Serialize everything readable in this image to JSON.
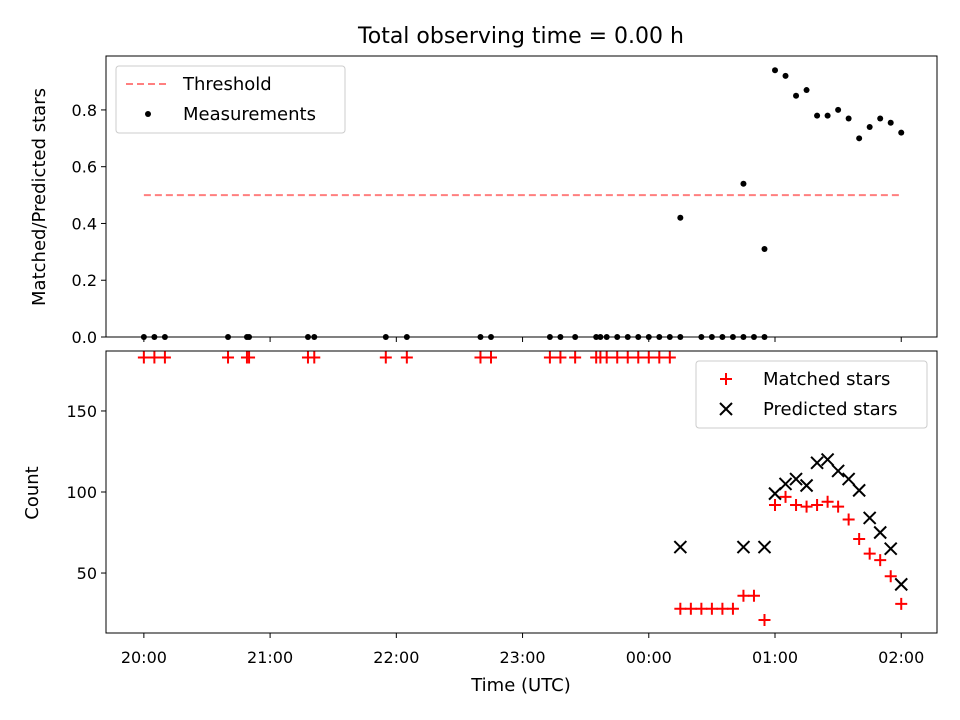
{
  "chart_data": [
    {
      "type": "scatter",
      "title": "Total observing time = 0.00 h",
      "ylabel": "Matched/Predicted stars",
      "xlabel": "",
      "xlim": [
        "19:42",
        "02:17"
      ],
      "ylim": [
        0,
        0.99
      ],
      "yticks": [
        "0.0",
        "0.2",
        "0.4",
        "0.6",
        "0.8"
      ],
      "xticks_labels_shown": false,
      "legend": {
        "position": "top-left"
      },
      "series": [
        {
          "name": "Threshold",
          "kind": "dashed-line",
          "color": "#ff7f7f",
          "x": [
            "20:00",
            "02:00"
          ],
          "y": [
            0.5,
            0.5
          ]
        },
        {
          "name": "Measurements",
          "kind": "dot",
          "color": "#000000",
          "x": [
            "20:00",
            "20:05",
            "20:10",
            "20:40",
            "20:49",
            "20:50",
            "21:18",
            "21:21",
            "21:55",
            "22:05",
            "22:40",
            "22:45",
            "23:13",
            "23:18",
            "23:25",
            "23:35",
            "23:37",
            "23:40",
            "23:45",
            "23:50",
            "23:55",
            "00:00",
            "00:05",
            "00:10",
            "00:15",
            "00:25",
            "00:30",
            "00:35",
            "00:40",
            "00:45",
            "00:50",
            "00:55",
            "01:00",
            "01:05",
            "01:10",
            "01:15",
            "01:20",
            "01:25",
            "01:30",
            "01:35",
            "01:40",
            "01:45",
            "01:50",
            "01:55",
            "02:00",
            "00:15",
            "00:45",
            "00:55"
          ],
          "y": [
            0,
            0,
            0,
            0,
            0,
            0,
            0,
            0,
            0,
            0,
            0,
            0,
            0,
            0,
            0,
            0,
            0,
            0,
            0,
            0,
            0,
            0,
            0,
            0,
            0,
            0,
            0,
            0,
            0,
            0,
            0,
            0.31,
            0.94,
            0.92,
            0.85,
            0.87,
            0.78,
            0.78,
            0.8,
            0.77,
            0.7,
            0.74,
            0.77,
            0.755,
            0.72,
            0.42,
            0.54,
            0
          ]
        }
      ]
    },
    {
      "type": "scatter",
      "title": "",
      "ylabel": "Count",
      "xlabel": "Time (UTC)",
      "xlim": [
        "19:42",
        "02:17"
      ],
      "ylim": [
        13,
        187
      ],
      "yticks": [
        "50",
        "100",
        "150"
      ],
      "xticks": [
        "20:00",
        "21:00",
        "22:00",
        "23:00",
        "00:00",
        "01:00",
        "02:00"
      ],
      "legend": {
        "position": "top-right"
      },
      "series": [
        {
          "name": "Matched stars",
          "marker": "plus",
          "color": "#ff0000",
          "x": [
            "20:00",
            "20:05",
            "20:10",
            "20:40",
            "20:49",
            "20:50",
            "21:18",
            "21:21",
            "21:55",
            "22:05",
            "22:40",
            "22:45",
            "23:13",
            "23:18",
            "23:25",
            "23:35",
            "23:37",
            "23:40",
            "23:45",
            "23:50",
            "23:55",
            "00:00",
            "00:05",
            "00:10",
            "00:15",
            "00:20",
            "00:25",
            "00:30",
            "00:35",
            "00:40",
            "00:45",
            "00:50",
            "00:55",
            "01:00",
            "01:05",
            "01:10",
            "01:15",
            "01:20",
            "01:25",
            "01:30",
            "01:35",
            "01:40",
            "01:45",
            "01:50",
            "01:55",
            "02:00"
          ],
          "y": [
            183,
            183,
            183,
            183,
            183,
            183,
            183,
            183,
            183,
            183,
            183,
            183,
            183,
            183,
            183,
            183,
            183,
            183,
            183,
            183,
            183,
            183,
            183,
            183,
            28,
            28,
            28,
            28,
            28,
            28,
            36,
            36,
            21,
            92,
            97,
            92,
            91,
            92,
            94,
            91,
            83,
            71,
            62,
            58,
            48,
            31
          ]
        },
        {
          "name": "Predicted stars",
          "marker": "x",
          "color": "#000000",
          "x": [
            "00:15",
            "00:45",
            "00:55",
            "01:00",
            "01:05",
            "01:10",
            "01:15",
            "01:20",
            "01:25",
            "01:30",
            "01:35",
            "01:40",
            "01:45",
            "01:50",
            "01:55",
            "02:00"
          ],
          "y": [
            66,
            66,
            66,
            99,
            105,
            108,
            104,
            118,
            120,
            113,
            108,
            101,
            84,
            75,
            65,
            43
          ]
        }
      ]
    }
  ]
}
